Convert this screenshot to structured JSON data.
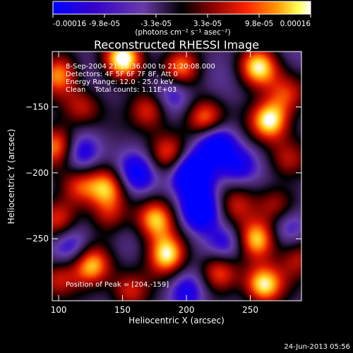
{
  "colorbar": {
    "tick_labels": [
      "-0.00016",
      "-9.8e-05",
      "-3.3e-05",
      "3.3e-05",
      "9.8e-05",
      "0.00016"
    ],
    "units": "(photons cm⁻² s⁻¹ asec⁻²)"
  },
  "info": {
    "line1": "8-Sep-2004 21:18:36.000 to 21:20:08.000",
    "line2": "Detectors: 4F 5F 6F 7F 8F, Att 0",
    "line3": "Energy Range: 12.0 - 25.0 keV",
    "line4": "Clean    Total counts: 1.11E+03",
    "peak": "Position of Peak = [204,-159]"
  },
  "footer": {
    "timestamp": "24-Jun-2013 05:56"
  },
  "chart_data": {
    "type": "heatmap",
    "title": "Reconstructed RHESSI Image",
    "xlabel": "Heliocentric X (arcsec)",
    "ylabel": "Heliocentric Y (arcsec)",
    "xlim": [
      95,
      290
    ],
    "ylim": [
      -297,
      -108
    ],
    "x_ticks": [
      100,
      150,
      200,
      250
    ],
    "y_ticks": [
      -150,
      -200,
      -250
    ],
    "colorbar_range": [
      -0.00016,
      0.00016
    ],
    "colors": {
      "low": "#0000ff",
      "mid": "#000000",
      "high": "#ffffff"
    },
    "blobs": [
      {
        "x": 150,
        "y": -113,
        "v": 1.0
      },
      {
        "x": 195,
        "y": -120,
        "v": 0.8
      },
      {
        "x": 256,
        "y": -120,
        "v": 0.9
      },
      {
        "x": 278,
        "y": -140,
        "v": 0.6
      },
      {
        "x": 100,
        "y": -125,
        "v": 0.75
      },
      {
        "x": 118,
        "y": -150,
        "v": 0.5
      },
      {
        "x": 265,
        "y": -160,
        "v": 1.0
      },
      {
        "x": 215,
        "y": -160,
        "v": 0.85
      },
      {
        "x": 170,
        "y": -152,
        "v": 0.7
      },
      {
        "x": 100,
        "y": -180,
        "v": 0.85
      },
      {
        "x": 185,
        "y": -185,
        "v": 0.6
      },
      {
        "x": 278,
        "y": -190,
        "v": 0.5
      },
      {
        "x": 115,
        "y": -210,
        "v": 0.6
      },
      {
        "x": 138,
        "y": -210,
        "v": 0.7
      },
      {
        "x": 100,
        "y": -235,
        "v": 0.65
      },
      {
        "x": 140,
        "y": -232,
        "v": 0.45
      },
      {
        "x": 175,
        "y": -235,
        "v": 0.8
      },
      {
        "x": 238,
        "y": -225,
        "v": 0.5
      },
      {
        "x": 270,
        "y": -225,
        "v": 0.5
      },
      {
        "x": 255,
        "y": -250,
        "v": 1.0
      },
      {
        "x": 185,
        "y": -262,
        "v": 1.0
      },
      {
        "x": 125,
        "y": -270,
        "v": 0.85
      },
      {
        "x": 260,
        "y": -285,
        "v": 1.0
      },
      {
        "x": 225,
        "y": -275,
        "v": 0.7
      },
      {
        "x": 100,
        "y": -280,
        "v": 0.6
      },
      {
        "x": 288,
        "y": -265,
        "v": 0.5
      },
      {
        "x": 155,
        "y": -290,
        "v": 0.6
      },
      {
        "x": 204,
        "y": -200,
        "v": -1.0
      },
      {
        "x": 222,
        "y": -176,
        "v": -0.7
      },
      {
        "x": 210,
        "y": -228,
        "v": -0.75
      },
      {
        "x": 115,
        "y": -185,
        "v": -0.55
      },
      {
        "x": 160,
        "y": -200,
        "v": -0.55
      },
      {
        "x": 240,
        "y": -195,
        "v": -0.5
      },
      {
        "x": 190,
        "y": -140,
        "v": -0.5
      },
      {
        "x": 230,
        "y": -255,
        "v": -0.55
      },
      {
        "x": 110,
        "y": -255,
        "v": -0.5
      },
      {
        "x": 280,
        "y": -240,
        "v": -0.45
      },
      {
        "x": 200,
        "y": -290,
        "v": -0.45
      }
    ]
  }
}
